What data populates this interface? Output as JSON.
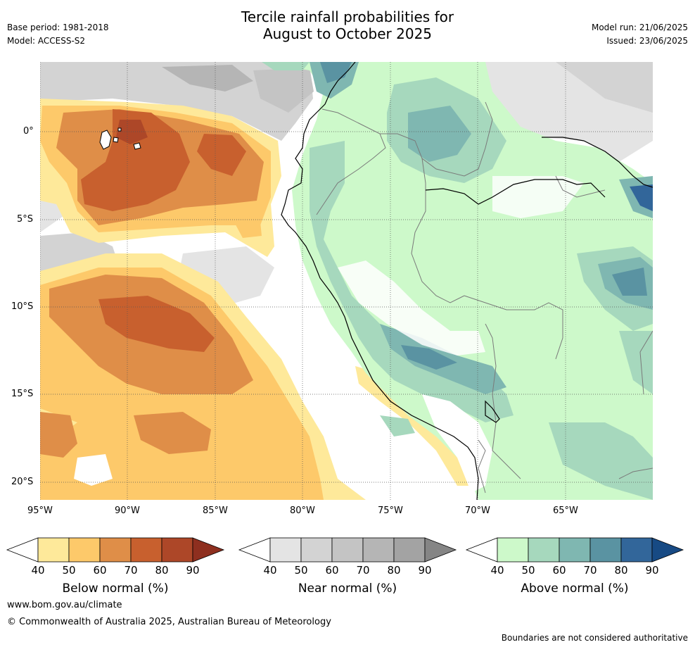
{
  "title_line1": "Tercile rainfall probabilities for",
  "title_line2": "August to October 2025",
  "meta_left": {
    "base_period": "Base period: 1981-2018",
    "model": "Model: ACCESS-S2"
  },
  "meta_right": {
    "model_run": "Model run: 21/06/2025",
    "issued": "Issued: 23/06/2025"
  },
  "axes": {
    "lat_labels": [
      "0°",
      "5°S",
      "10°S",
      "15°S",
      "20°S"
    ],
    "lon_labels": [
      "95°W",
      "90°W",
      "85°W",
      "80°W",
      "75°W",
      "70°W",
      "65°W"
    ]
  },
  "colorbars": [
    {
      "title": "Below normal (%)",
      "ticks": [
        "40",
        "50",
        "60",
        "70",
        "80",
        "90"
      ],
      "colors": [
        "#ffffff",
        "#fee99a",
        "#fdc96a",
        "#df8e48",
        "#c8602e",
        "#ad4728",
        "#8e2f1f"
      ]
    },
    {
      "title": "Near normal (%)",
      "ticks": [
        "40",
        "50",
        "60",
        "70",
        "80",
        "90"
      ],
      "colors": [
        "#ffffff",
        "#e4e4e4",
        "#d3d3d3",
        "#c4c4c4",
        "#b5b5b5",
        "#a3a3a3",
        "#858585"
      ]
    },
    {
      "title": "Above normal (%)",
      "ticks": [
        "40",
        "50",
        "60",
        "70",
        "80",
        "90"
      ],
      "colors": [
        "#ffffff",
        "#cdf9ca",
        "#a6d8bd",
        "#7fb7b1",
        "#5a93a2",
        "#32669a",
        "#174a84"
      ]
    }
  ],
  "footer": {
    "url": "www.bom.gov.au/climate",
    "copyright": "© Commonwealth of Australia 2025, Australian Bureau of Meteorology",
    "disclaimer": "Boundaries are not considered authoritative"
  }
}
